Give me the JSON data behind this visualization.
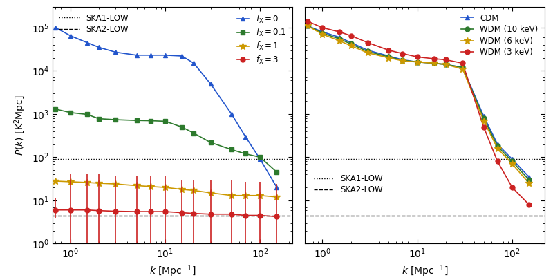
{
  "left_panel": {
    "ska1_low": 90,
    "ska2_low": 4.5,
    "series": [
      {
        "label": "$f_{\\rm X} = 0$",
        "color": "#2255cc",
        "marker": "^",
        "markersize": 5,
        "k": [
          0.7,
          1.0,
          1.5,
          2.0,
          3.0,
          5.0,
          7.0,
          10.0,
          15.0,
          20.0,
          30.0,
          50.0,
          70.0,
          100.0,
          150.0,
          200.0
        ],
        "P": [
          100000.0,
          65000.0,
          45000.0,
          35000.0,
          27000.0,
          23000.0,
          23000.0,
          23000.0,
          22000.0,
          15000.0,
          5000,
          1000,
          300,
          90,
          20,
          null
        ],
        "has_err": false
      },
      {
        "label": "$f_{\\rm X} = 0.1$",
        "color": "#2d7a2d",
        "marker": "s",
        "markersize": 5,
        "k": [
          0.7,
          1.0,
          1.5,
          2.0,
          3.0,
          5.0,
          7.0,
          10.0,
          15.0,
          20.0,
          30.0,
          50.0,
          70.0,
          100.0,
          150.0,
          200.0
        ],
        "P": [
          1300,
          1080,
          980,
          780,
          740,
          710,
          700,
          680,
          500,
          360,
          220,
          150,
          120,
          100,
          45,
          null
        ],
        "has_err": false
      },
      {
        "label": "$f_{\\rm X} = 1$",
        "color": "#cc9900",
        "marker": "*",
        "markersize": 7,
        "k": [
          0.7,
          1.0,
          1.5,
          2.0,
          3.0,
          5.0,
          7.0,
          10.0,
          15.0,
          20.0,
          30.0,
          50.0,
          70.0,
          100.0,
          150.0,
          200.0
        ],
        "P": [
          28,
          27,
          26,
          25,
          24,
          22,
          21,
          20,
          18,
          17,
          15,
          13,
          13,
          13,
          12,
          null
        ],
        "has_err": false
      },
      {
        "label": "$f_{\\rm X} = 3$",
        "color": "#cc2222",
        "marker": "o",
        "markersize": 5,
        "k": [
          0.7,
          1.0,
          1.5,
          2.0,
          3.0,
          5.0,
          7.0,
          10.0,
          15.0,
          20.0,
          30.0,
          50.0,
          70.0,
          100.0,
          150.0
        ],
        "P": [
          6.0,
          6.0,
          6.0,
          5.8,
          5.6,
          5.5,
          5.5,
          5.5,
          5.2,
          5.0,
          4.8,
          4.8,
          4.5,
          4.5,
          4.2
        ],
        "yerr_lo": [
          4.0,
          1.0,
          1.0,
          1.0,
          1.0,
          1.0,
          1.0,
          1.0,
          1.0,
          1.0,
          1.0,
          1.0,
          1.0,
          1.0,
          1.0
        ],
        "yerr_hi": [
          5.0,
          35,
          35,
          35,
          30,
          30,
          30,
          30,
          25,
          25,
          25,
          25,
          22,
          22,
          20
        ],
        "has_err": true
      }
    ],
    "xlabel": "$k$ [Mpc$^{-1}$]",
    "ylabel": "$P(k)$ [K$^2$Mpc]",
    "xlim": [
      0.65,
      220
    ],
    "ylim": [
      1.0,
      300000.0
    ]
  },
  "right_panel": {
    "ska1_low": 90,
    "ska2_low": 4.5,
    "series": [
      {
        "label": "CDM",
        "color": "#2255cc",
        "marker": "^",
        "markersize": 5,
        "k": [
          0.7,
          1.0,
          1.5,
          2.0,
          3.0,
          5.0,
          7.0,
          10.0,
          15.0,
          20.0,
          30.0,
          50.0,
          70.0,
          100.0,
          150.0,
          200.0
        ],
        "P": [
          110000.0,
          80000.0,
          60000.0,
          45000.0,
          30000.0,
          22000.0,
          18000.0,
          16000.0,
          15000.0,
          14000.0,
          12000.0,
          900,
          200,
          90,
          35,
          null
        ]
      },
      {
        "label": "WDM (10 keV)",
        "color": "#2d7a2d",
        "marker": "o",
        "markersize": 5,
        "k": [
          0.7,
          1.0,
          1.5,
          2.0,
          3.0,
          5.0,
          7.0,
          10.0,
          15.0,
          20.0,
          30.0,
          50.0,
          70.0,
          100.0,
          150.0,
          200.0
        ],
        "P": [
          110000.0,
          75000.0,
          55000.0,
          42000.0,
          28000.0,
          21000.0,
          17500.0,
          16000.0,
          15000.0,
          14000.0,
          12000.0,
          800,
          180,
          80,
          30,
          null
        ]
      },
      {
        "label": "WDM (6 keV)",
        "color": "#cc9900",
        "marker": "*",
        "markersize": 7,
        "k": [
          0.7,
          1.0,
          1.5,
          2.0,
          3.0,
          5.0,
          7.0,
          10.0,
          15.0,
          20.0,
          30.0,
          50.0,
          70.0,
          100.0,
          150.0,
          200.0
        ],
        "P": [
          110000.0,
          70000.0,
          50000.0,
          38000.0,
          26000.0,
          20000.0,
          17000.0,
          16000.0,
          15000.0,
          14000.0,
          11000.0,
          700,
          160,
          70,
          25,
          null
        ]
      },
      {
        "label": "WDM (3 keV)",
        "color": "#cc2222",
        "marker": "o",
        "markersize": 5,
        "k": [
          0.7,
          1.0,
          1.5,
          2.0,
          3.0,
          5.0,
          7.0,
          10.0,
          15.0,
          20.0,
          30.0,
          50.0,
          70.0,
          100.0,
          150.0,
          200.0
        ],
        "P": [
          140000.0,
          100000.0,
          80000.0,
          65000.0,
          45000.0,
          30000.0,
          25000.0,
          21000.0,
          19000.0,
          18000.0,
          15000.0,
          500,
          80,
          20,
          8,
          null
        ]
      }
    ],
    "xlabel": "$k$ [Mpc$^{-1}$]",
    "xlim": [
      0.65,
      220
    ],
    "ylim": [
      1.0,
      300000.0
    ]
  }
}
